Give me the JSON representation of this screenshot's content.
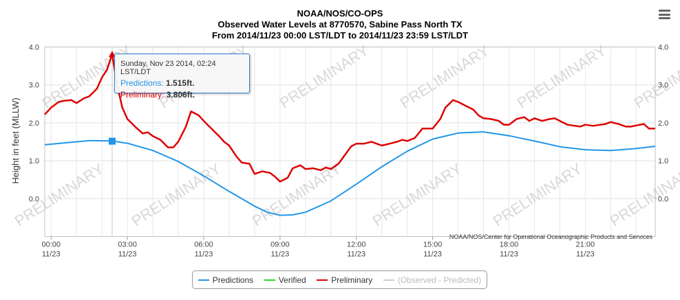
{
  "header": {
    "line1": "NOAA/NOS/CO-OPS",
    "line2": "Observed Water Levels at 8770570, Sabine Pass North TX",
    "line3": "From 2014/11/23 00:00 LST/LDT to 2014/11/23 23:59 LST/LDT"
  },
  "watermark": "PRELIMINARY",
  "credit": "NOAA/NOS/Center for Operational Oceanographic Products and Services",
  "tooltip": {
    "time": "Sunday, Nov 23 2014, 02:24 LST/LDT",
    "pred_label": "Predictions:",
    "pred_value": "1.515ft.",
    "prelim_label": "Preliminary:",
    "prelim_value": "3.806ft."
  },
  "legend": [
    {
      "label": "Predictions",
      "color": "#2196e8"
    },
    {
      "label": "Verified",
      "color": "#22dd22"
    },
    {
      "label": "Preliminary",
      "color": "#dd0000"
    },
    {
      "label": "(Observed - Predicted)",
      "color": "#cccccc"
    }
  ],
  "chart_data": {
    "type": "line",
    "ylabel": "Height in feet (MLLW)",
    "ylim": [
      -1.0,
      4.0
    ],
    "xlim": [
      -0.25,
      23.75
    ],
    "yticks": [
      "4.0",
      "3.0",
      "2.0",
      "1.0",
      "0.0"
    ],
    "xtick_times": [
      "00:00",
      "03:00",
      "06:00",
      "09:00",
      "12:00",
      "15:00",
      "18:00",
      "21:00"
    ],
    "xtick_dates": [
      "11/23",
      "11/23",
      "11/23",
      "11/23",
      "11/23",
      "11/23",
      "11/23",
      "11/23"
    ],
    "grid": true,
    "colors": {
      "predictions": "#2196e8",
      "preliminary": "#dd0000"
    },
    "series": [
      {
        "name": "Predictions",
        "x": [
          -0.25,
          0.5,
          1.5,
          2.4,
          3.0,
          4.0,
          5.0,
          6.0,
          7.0,
          8.0,
          8.5,
          9.0,
          9.5,
          10.0,
          11.0,
          12.0,
          13.0,
          14.0,
          15.0,
          16.0,
          17.0,
          18.0,
          19.0,
          20.0,
          21.0,
          22.0,
          23.0,
          23.75
        ],
        "y": [
          1.42,
          1.47,
          1.53,
          1.52,
          1.46,
          1.27,
          0.98,
          0.6,
          0.19,
          -0.2,
          -0.36,
          -0.44,
          -0.43,
          -0.36,
          -0.06,
          0.38,
          0.84,
          1.25,
          1.57,
          1.73,
          1.76,
          1.66,
          1.52,
          1.37,
          1.29,
          1.27,
          1.32,
          1.38
        ]
      },
      {
        "name": "Preliminary",
        "x": [
          -0.25,
          0.0,
          0.3,
          0.5,
          0.8,
          1.0,
          1.3,
          1.5,
          1.8,
          2.0,
          2.2,
          2.4,
          2.6,
          2.8,
          3.0,
          3.3,
          3.6,
          3.8,
          4.0,
          4.3,
          4.6,
          4.8,
          5.0,
          5.3,
          5.5,
          5.8,
          6.0,
          6.3,
          6.6,
          6.8,
          7.0,
          7.3,
          7.5,
          7.8,
          8.0,
          8.3,
          8.6,
          8.8,
          9.0,
          9.3,
          9.5,
          9.8,
          10.0,
          10.3,
          10.6,
          10.8,
          11.0,
          11.3,
          11.6,
          11.8,
          12.0,
          12.3,
          12.6,
          12.8,
          13.0,
          13.3,
          13.6,
          13.8,
          14.0,
          14.3,
          14.6,
          14.8,
          15.0,
          15.3,
          15.5,
          15.8,
          16.0,
          16.3,
          16.6,
          16.8,
          17.0,
          17.3,
          17.6,
          17.8,
          18.0,
          18.3,
          18.6,
          18.8,
          19.0,
          19.3,
          19.6,
          19.8,
          20.0,
          20.3,
          20.6,
          20.8,
          21.0,
          21.3,
          21.6,
          21.8,
          22.0,
          22.3,
          22.6,
          22.8,
          23.0,
          23.3,
          23.5,
          23.75
        ],
        "y": [
          2.22,
          2.4,
          2.55,
          2.58,
          2.6,
          2.52,
          2.65,
          2.7,
          2.9,
          3.2,
          3.4,
          3.81,
          3.0,
          2.4,
          2.1,
          1.9,
          1.72,
          1.75,
          1.65,
          1.55,
          1.35,
          1.35,
          1.5,
          1.9,
          2.3,
          2.2,
          2.05,
          1.85,
          1.65,
          1.5,
          1.4,
          1.1,
          0.95,
          0.92,
          0.65,
          0.72,
          0.68,
          0.58,
          0.45,
          0.55,
          0.8,
          0.88,
          0.78,
          0.8,
          0.75,
          0.82,
          0.78,
          0.92,
          1.2,
          1.38,
          1.45,
          1.45,
          1.5,
          1.45,
          1.4,
          1.45,
          1.5,
          1.55,
          1.52,
          1.6,
          1.85,
          1.85,
          1.85,
          2.1,
          2.4,
          2.6,
          2.55,
          2.45,
          2.35,
          2.2,
          2.12,
          2.1,
          2.05,
          1.95,
          1.95,
          2.1,
          2.15,
          2.05,
          2.12,
          2.05,
          2.1,
          2.12,
          2.05,
          1.95,
          1.92,
          1.9,
          1.95,
          1.92,
          1.95,
          1.97,
          2.02,
          1.97,
          1.9,
          1.9,
          1.93,
          1.97,
          1.85,
          1.85
        ]
      }
    ],
    "tooltip_point": {
      "x": 2.4,
      "predictions": 1.515,
      "preliminary": 3.806
    }
  }
}
